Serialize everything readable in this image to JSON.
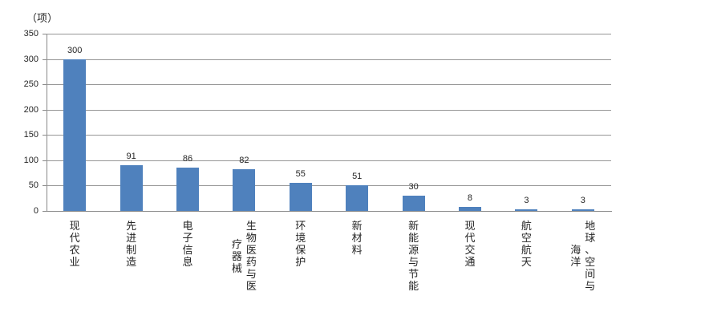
{
  "chart_data": {
    "type": "bar",
    "title": "",
    "unit_label": "（项）",
    "categories": [
      "现代农业",
      "先进制造",
      "电子信息",
      "生物医药与医疗器械",
      "环境保护",
      "新材料",
      "新能源与节能",
      "现代交通",
      "航空航天",
      "地球、空间与海洋"
    ],
    "values": [
      300,
      91,
      86,
      82,
      55,
      51,
      30,
      8,
      3,
      3
    ],
    "xlabel": "",
    "ylabel": "项",
    "ylim": [
      0,
      350
    ],
    "y_ticks": [
      0,
      50,
      100,
      150,
      200,
      250,
      300,
      350
    ],
    "grid": true,
    "legend": "none",
    "bar_color": "#4f81bd",
    "gridline_color": "#969696",
    "axis_color": "#898989",
    "text_color": "#262626",
    "background_color": "#ffffff"
  }
}
